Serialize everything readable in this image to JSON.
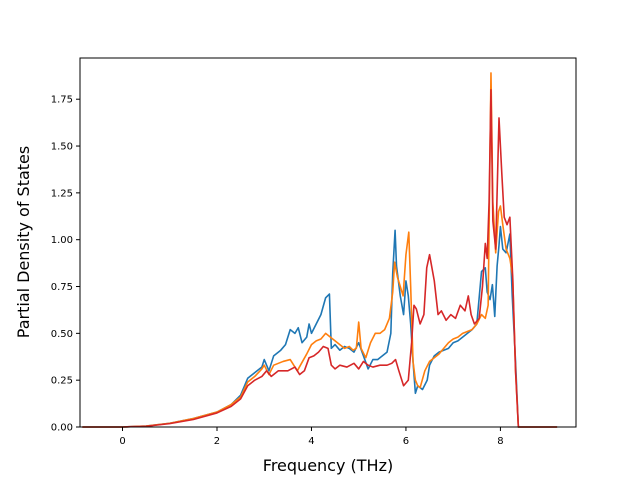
{
  "chart_data": {
    "type": "line",
    "title": "",
    "xlabel": "Frequency (THz)",
    "ylabel": "Partial Density of States",
    "xlim": [
      -0.9,
      9.6
    ],
    "ylim": [
      0.0,
      1.97
    ],
    "xticks": [
      0,
      2,
      4,
      6,
      8
    ],
    "xtick_labels": [
      "0",
      "2",
      "4",
      "6",
      "8"
    ],
    "yticks": [
      0.0,
      0.25,
      0.5,
      0.75,
      1.0,
      1.25,
      1.5,
      1.75
    ],
    "ytick_labels": [
      "0.00",
      "0.25",
      "0.50",
      "0.75",
      "1.00",
      "1.25",
      "1.50",
      "1.75"
    ],
    "grid": false,
    "legend": "none",
    "series": [
      {
        "color": "#1f77b4",
        "points": [
          [
            -0.85,
            0
          ],
          [
            0,
            0
          ],
          [
            0.5,
            0.005
          ],
          [
            1.0,
            0.02
          ],
          [
            1.5,
            0.045
          ],
          [
            2.0,
            0.08
          ],
          [
            2.3,
            0.12
          ],
          [
            2.5,
            0.17
          ],
          [
            2.65,
            0.26
          ],
          [
            2.8,
            0.29
          ],
          [
            2.95,
            0.32
          ],
          [
            3.0,
            0.36
          ],
          [
            3.1,
            0.3
          ],
          [
            3.2,
            0.38
          ],
          [
            3.35,
            0.41
          ],
          [
            3.45,
            0.44
          ],
          [
            3.55,
            0.52
          ],
          [
            3.65,
            0.5
          ],
          [
            3.72,
            0.53
          ],
          [
            3.8,
            0.45
          ],
          [
            3.9,
            0.48
          ],
          [
            3.95,
            0.55
          ],
          [
            4.0,
            0.5
          ],
          [
            4.1,
            0.55
          ],
          [
            4.2,
            0.6
          ],
          [
            4.3,
            0.69
          ],
          [
            4.38,
            0.71
          ],
          [
            4.42,
            0.42
          ],
          [
            4.5,
            0.44
          ],
          [
            4.6,
            0.41
          ],
          [
            4.7,
            0.43
          ],
          [
            4.8,
            0.42
          ],
          [
            4.9,
            0.4
          ],
          [
            5.0,
            0.45
          ],
          [
            5.1,
            0.38
          ],
          [
            5.2,
            0.31
          ],
          [
            5.3,
            0.36
          ],
          [
            5.4,
            0.36
          ],
          [
            5.5,
            0.38
          ],
          [
            5.6,
            0.4
          ],
          [
            5.68,
            0.5
          ],
          [
            5.72,
            0.82
          ],
          [
            5.77,
            1.05
          ],
          [
            5.8,
            0.86
          ],
          [
            5.88,
            0.7
          ],
          [
            5.95,
            0.6
          ],
          [
            6.0,
            0.78
          ],
          [
            6.05,
            0.7
          ],
          [
            6.1,
            0.55
          ],
          [
            6.15,
            0.35
          ],
          [
            6.2,
            0.18
          ],
          [
            6.25,
            0.22
          ],
          [
            6.35,
            0.2
          ],
          [
            6.45,
            0.25
          ],
          [
            6.5,
            0.33
          ],
          [
            6.6,
            0.38
          ],
          [
            6.7,
            0.4
          ],
          [
            6.8,
            0.41
          ],
          [
            6.9,
            0.42
          ],
          [
            7.0,
            0.45
          ],
          [
            7.1,
            0.46
          ],
          [
            7.2,
            0.48
          ],
          [
            7.3,
            0.5
          ],
          [
            7.4,
            0.52
          ],
          [
            7.5,
            0.55
          ],
          [
            7.6,
            0.83
          ],
          [
            7.68,
            0.85
          ],
          [
            7.72,
            0.72
          ],
          [
            7.78,
            0.68
          ],
          [
            7.83,
            0.76
          ],
          [
            7.88,
            0.59
          ],
          [
            7.93,
            0.86
          ],
          [
            7.97,
            0.97
          ],
          [
            8.0,
            1.07
          ],
          [
            8.05,
            0.95
          ],
          [
            8.12,
            0.93
          ],
          [
            8.2,
            1.03
          ],
          [
            8.25,
            0.7
          ],
          [
            8.32,
            0.35
          ],
          [
            8.38,
            0
          ],
          [
            9.2,
            0
          ]
        ]
      },
      {
        "color": "#ff7f0e",
        "points": [
          [
            -0.85,
            0
          ],
          [
            0,
            0
          ],
          [
            0.5,
            0.005
          ],
          [
            1.0,
            0.02
          ],
          [
            1.5,
            0.045
          ],
          [
            2.0,
            0.08
          ],
          [
            2.3,
            0.12
          ],
          [
            2.5,
            0.16
          ],
          [
            2.65,
            0.24
          ],
          [
            2.8,
            0.27
          ],
          [
            2.95,
            0.31
          ],
          [
            3.0,
            0.33
          ],
          [
            3.1,
            0.28
          ],
          [
            3.2,
            0.33
          ],
          [
            3.4,
            0.35
          ],
          [
            3.55,
            0.36
          ],
          [
            3.7,
            0.3
          ],
          [
            3.9,
            0.39
          ],
          [
            4.0,
            0.44
          ],
          [
            4.1,
            0.46
          ],
          [
            4.2,
            0.47
          ],
          [
            4.3,
            0.5
          ],
          [
            4.4,
            0.48
          ],
          [
            4.5,
            0.46
          ],
          [
            4.6,
            0.44
          ],
          [
            4.7,
            0.42
          ],
          [
            4.8,
            0.43
          ],
          [
            4.88,
            0.41
          ],
          [
            4.95,
            0.42
          ],
          [
            5.0,
            0.56
          ],
          [
            5.05,
            0.42
          ],
          [
            5.15,
            0.37
          ],
          [
            5.25,
            0.45
          ],
          [
            5.35,
            0.5
          ],
          [
            5.45,
            0.5
          ],
          [
            5.55,
            0.52
          ],
          [
            5.65,
            0.58
          ],
          [
            5.72,
            0.72
          ],
          [
            5.76,
            0.88
          ],
          [
            5.82,
            0.8
          ],
          [
            5.88,
            0.75
          ],
          [
            5.94,
            0.7
          ],
          [
            6.0,
            0.92
          ],
          [
            6.06,
            1.04
          ],
          [
            6.1,
            0.75
          ],
          [
            6.15,
            0.35
          ],
          [
            6.2,
            0.25
          ],
          [
            6.25,
            0.22
          ],
          [
            6.3,
            0.21
          ],
          [
            6.4,
            0.3
          ],
          [
            6.5,
            0.35
          ],
          [
            6.6,
            0.37
          ],
          [
            6.7,
            0.39
          ],
          [
            6.8,
            0.42
          ],
          [
            6.9,
            0.45
          ],
          [
            7.0,
            0.47
          ],
          [
            7.1,
            0.48
          ],
          [
            7.2,
            0.5
          ],
          [
            7.3,
            0.51
          ],
          [
            7.4,
            0.52
          ],
          [
            7.5,
            0.55
          ],
          [
            7.6,
            0.6
          ],
          [
            7.68,
            0.58
          ],
          [
            7.74,
            0.65
          ],
          [
            7.8,
            1.89
          ],
          [
            7.84,
            1.2
          ],
          [
            7.9,
            0.93
          ],
          [
            7.96,
            1.15
          ],
          [
            8.0,
            1.18
          ],
          [
            8.05,
            1.08
          ],
          [
            8.12,
            0.95
          ],
          [
            8.2,
            0.9
          ],
          [
            8.26,
            0.8
          ],
          [
            8.32,
            0.3
          ],
          [
            8.38,
            0
          ],
          [
            9.2,
            0
          ]
        ]
      },
      {
        "color": "#d62728",
        "points": [
          [
            -0.85,
            0
          ],
          [
            0,
            0
          ],
          [
            0.5,
            0.004
          ],
          [
            1.0,
            0.018
          ],
          [
            1.5,
            0.04
          ],
          [
            2.0,
            0.075
          ],
          [
            2.3,
            0.11
          ],
          [
            2.5,
            0.15
          ],
          [
            2.65,
            0.22
          ],
          [
            2.8,
            0.25
          ],
          [
            2.95,
            0.27
          ],
          [
            3.05,
            0.3
          ],
          [
            3.15,
            0.27
          ],
          [
            3.3,
            0.3
          ],
          [
            3.5,
            0.3
          ],
          [
            3.65,
            0.32
          ],
          [
            3.75,
            0.28
          ],
          [
            3.85,
            0.3
          ],
          [
            3.95,
            0.37
          ],
          [
            4.05,
            0.38
          ],
          [
            4.15,
            0.4
          ],
          [
            4.25,
            0.43
          ],
          [
            4.35,
            0.42
          ],
          [
            4.42,
            0.33
          ],
          [
            4.5,
            0.31
          ],
          [
            4.6,
            0.33
          ],
          [
            4.75,
            0.32
          ],
          [
            4.9,
            0.34
          ],
          [
            5.0,
            0.31
          ],
          [
            5.1,
            0.35
          ],
          [
            5.2,
            0.33
          ],
          [
            5.3,
            0.32
          ],
          [
            5.45,
            0.33
          ],
          [
            5.6,
            0.33
          ],
          [
            5.7,
            0.34
          ],
          [
            5.78,
            0.36
          ],
          [
            5.85,
            0.3
          ],
          [
            5.95,
            0.22
          ],
          [
            6.05,
            0.25
          ],
          [
            6.12,
            0.45
          ],
          [
            6.17,
            0.65
          ],
          [
            6.22,
            0.63
          ],
          [
            6.3,
            0.55
          ],
          [
            6.38,
            0.6
          ],
          [
            6.44,
            0.85
          ],
          [
            6.5,
            0.92
          ],
          [
            6.6,
            0.78
          ],
          [
            6.68,
            0.6
          ],
          [
            6.75,
            0.62
          ],
          [
            6.85,
            0.57
          ],
          [
            6.95,
            0.6
          ],
          [
            7.05,
            0.58
          ],
          [
            7.15,
            0.65
          ],
          [
            7.25,
            0.62
          ],
          [
            7.32,
            0.7
          ],
          [
            7.38,
            0.6
          ],
          [
            7.45,
            0.55
          ],
          [
            7.55,
            0.58
          ],
          [
            7.62,
            0.75
          ],
          [
            7.68,
            0.98
          ],
          [
            7.72,
            0.9
          ],
          [
            7.76,
            1.2
          ],
          [
            7.8,
            1.8
          ],
          [
            7.84,
            1.1
          ],
          [
            7.9,
            0.95
          ],
          [
            7.97,
            1.65
          ],
          [
            8.03,
            1.35
          ],
          [
            8.08,
            1.12
          ],
          [
            8.14,
            1.08
          ],
          [
            8.2,
            1.12
          ],
          [
            8.26,
            0.8
          ],
          [
            8.32,
            0.3
          ],
          [
            8.38,
            0
          ],
          [
            9.2,
            0
          ]
        ]
      }
    ]
  }
}
